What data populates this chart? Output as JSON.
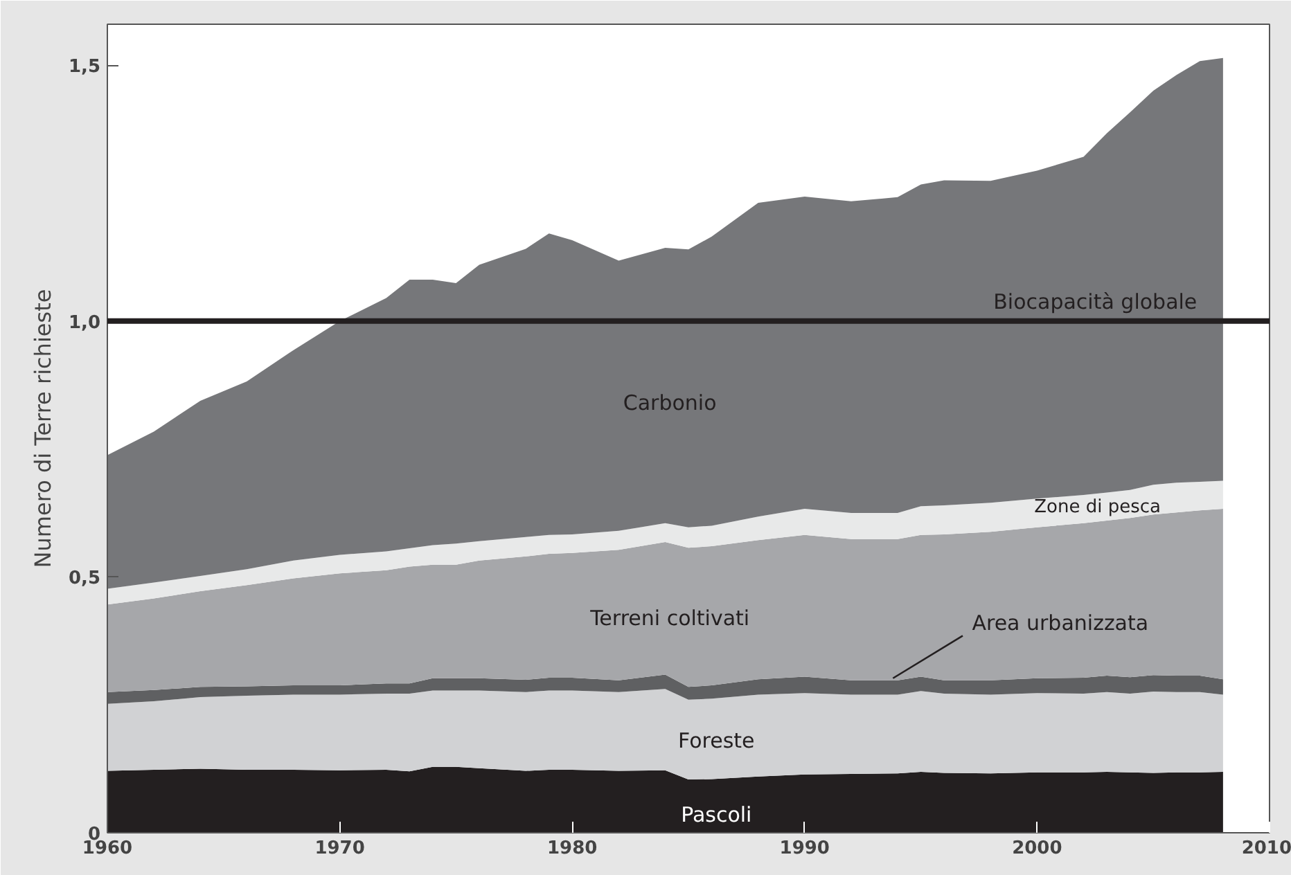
{
  "chart_data": {
    "type": "area",
    "stacked": true,
    "ylabel": "Numero di Terre richieste",
    "x": [
      1960,
      1962,
      1964,
      1966,
      1968,
      1970,
      1972,
      1973,
      1974,
      1975,
      1976,
      1978,
      1979,
      1980,
      1982,
      1984,
      1985,
      1986,
      1988,
      1990,
      1992,
      1994,
      1995,
      1996,
      1998,
      2000,
      2002,
      2003,
      2004,
      2005,
      2006,
      2007,
      2008
    ],
    "series": [
      {
        "name": "Pascoli",
        "color": "#231f20",
        "values": [
          0.121,
          0.123,
          0.125,
          0.123,
          0.123,
          0.122,
          0.123,
          0.12,
          0.129,
          0.129,
          0.126,
          0.121,
          0.123,
          0.123,
          0.121,
          0.122,
          0.104,
          0.105,
          0.11,
          0.114,
          0.115,
          0.116,
          0.119,
          0.117,
          0.116,
          0.118,
          0.118,
          0.119,
          0.118,
          0.117,
          0.118,
          0.118,
          0.119
        ]
      },
      {
        "name": "Foreste",
        "color": "#d1d2d4",
        "values": [
          0.131,
          0.134,
          0.14,
          0.145,
          0.147,
          0.148,
          0.149,
          0.152,
          0.149,
          0.149,
          0.152,
          0.154,
          0.155,
          0.155,
          0.154,
          0.159,
          0.156,
          0.157,
          0.16,
          0.159,
          0.155,
          0.154,
          0.158,
          0.155,
          0.154,
          0.155,
          0.154,
          0.156,
          0.154,
          0.159,
          0.157,
          0.157,
          0.151
        ]
      },
      {
        "name": "Area urbanizzata",
        "color": "#5f6062",
        "values": [
          0.023,
          0.022,
          0.02,
          0.018,
          0.018,
          0.018,
          0.02,
          0.02,
          0.024,
          0.024,
          0.024,
          0.024,
          0.025,
          0.025,
          0.023,
          0.028,
          0.025,
          0.026,
          0.03,
          0.032,
          0.028,
          0.028,
          0.028,
          0.026,
          0.028,
          0.029,
          0.031,
          0.032,
          0.032,
          0.032,
          0.032,
          0.032,
          0.03
        ]
      },
      {
        "name": "Terreni coltivati",
        "color": "#a6a7aa",
        "values": [
          0.171,
          0.179,
          0.187,
          0.198,
          0.209,
          0.219,
          0.221,
          0.228,
          0.222,
          0.222,
          0.23,
          0.241,
          0.242,
          0.244,
          0.255,
          0.259,
          0.272,
          0.272,
          0.272,
          0.277,
          0.276,
          0.276,
          0.277,
          0.285,
          0.29,
          0.295,
          0.302,
          0.303,
          0.311,
          0.314,
          0.319,
          0.323,
          0.333
        ]
      },
      {
        "name": "Zone di pesca",
        "color": "#e8e9e9",
        "values": [
          0.031,
          0.031,
          0.03,
          0.031,
          0.035,
          0.036,
          0.037,
          0.036,
          0.038,
          0.041,
          0.038,
          0.038,
          0.037,
          0.036,
          0.037,
          0.037,
          0.04,
          0.04,
          0.046,
          0.051,
          0.051,
          0.051,
          0.056,
          0.057,
          0.057,
          0.056,
          0.055,
          0.055,
          0.055,
          0.058,
          0.058,
          0.056,
          0.055
        ]
      },
      {
        "name": "Carbonio",
        "color": "#76777a",
        "values": [
          0.261,
          0.295,
          0.342,
          0.367,
          0.411,
          0.457,
          0.495,
          0.525,
          0.519,
          0.509,
          0.54,
          0.563,
          0.589,
          0.575,
          0.528,
          0.538,
          0.543,
          0.565,
          0.613,
          0.61,
          0.609,
          0.617,
          0.629,
          0.635,
          0.629,
          0.641,
          0.661,
          0.702,
          0.738,
          0.77,
          0.797,
          0.822,
          0.826
        ]
      }
    ],
    "xlim": [
      1960,
      2010
    ],
    "ylim": [
      0,
      1.58
    ],
    "xticks": [
      1960,
      1970,
      1980,
      1990,
      2000,
      2010
    ],
    "yticks": [
      {
        "value": 0,
        "label": "0"
      },
      {
        "value": 0.5,
        "label": "0,5"
      },
      {
        "value": 1.0,
        "label": "1,0"
      },
      {
        "value": 1.5,
        "label": "1,5"
      }
    ],
    "ref_lines": [
      {
        "axis": "y",
        "value": 1.0,
        "label": "Biocapacità globale",
        "color": "#231f20"
      }
    ],
    "grid": false
  }
}
